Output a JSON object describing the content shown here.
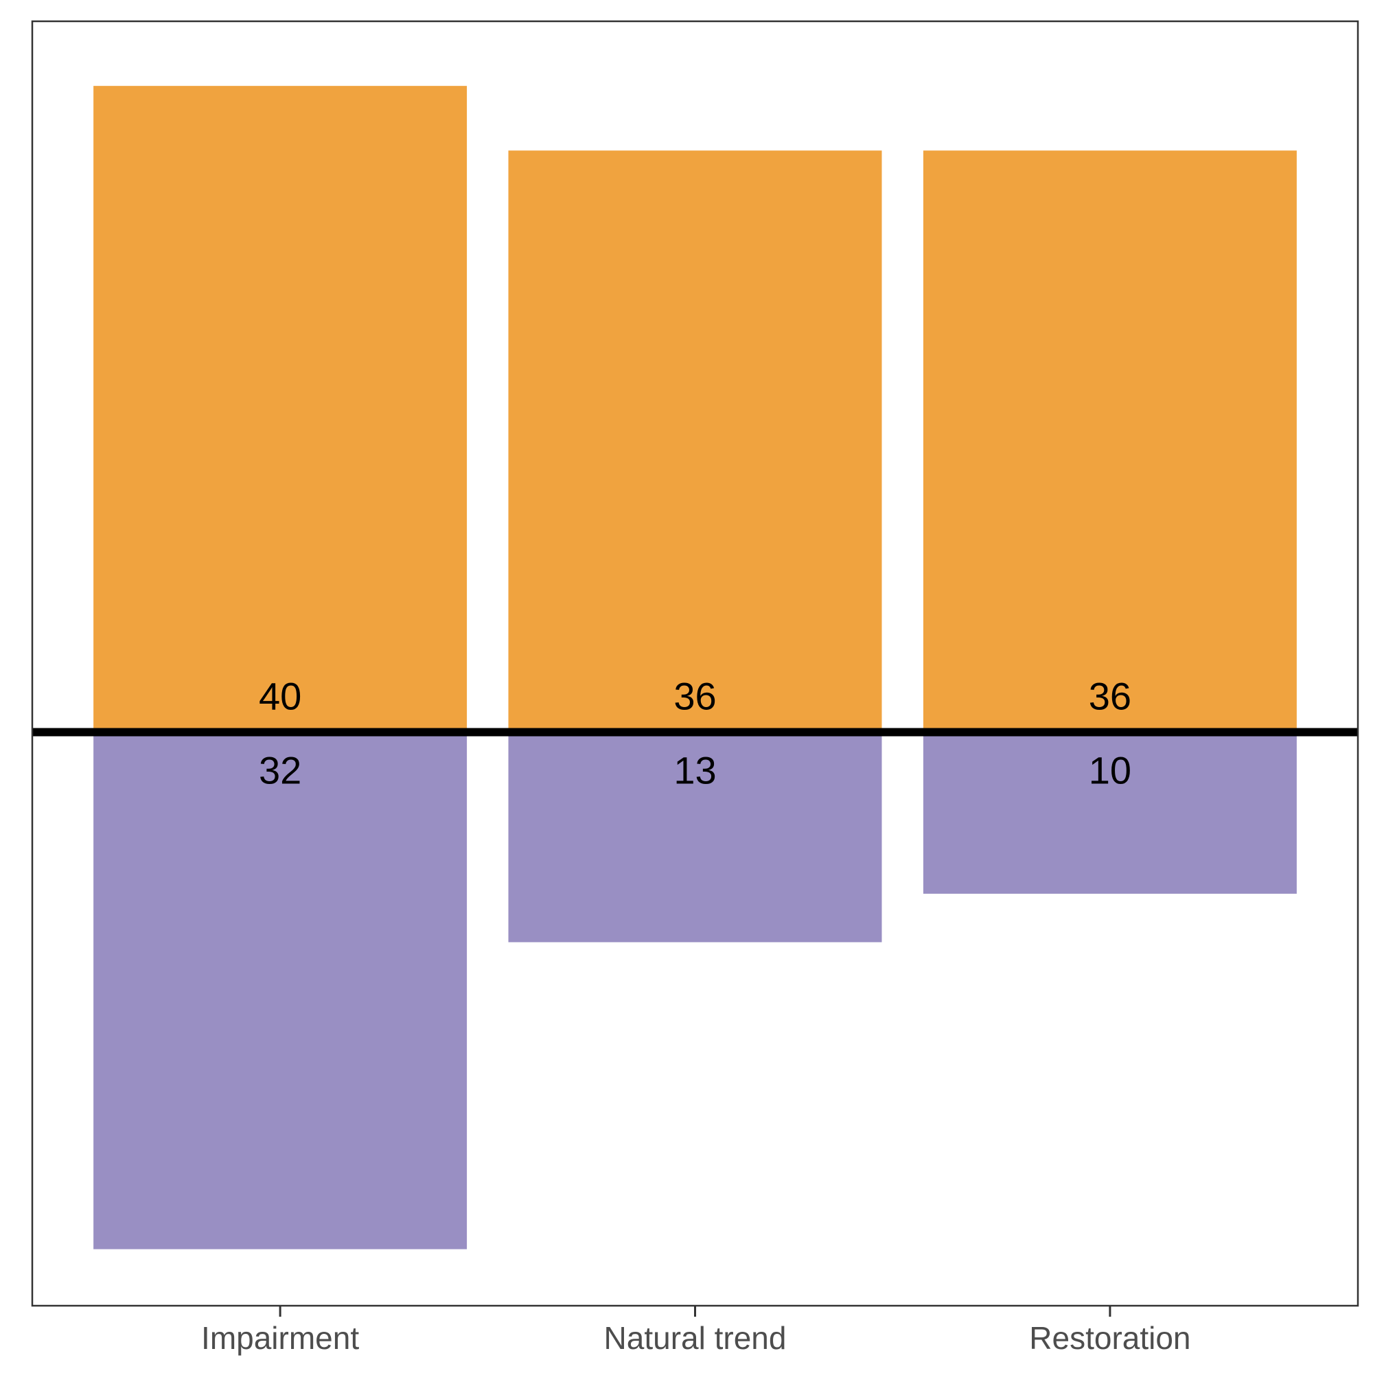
{
  "chart_data": {
    "type": "bar",
    "categories": [
      "Impairment",
      "Natural trend",
      "Restoration"
    ],
    "series": [
      {
        "values": [
          40,
          36,
          36
        ],
        "color": "#F0A33F",
        "direction": "up"
      },
      {
        "values": [
          32,
          13,
          10
        ],
        "color": "#998FC3",
        "direction": "down"
      }
    ],
    "ylim": [
      -35.5,
      44
    ],
    "baseline": 0,
    "xlabel": "",
    "ylabel": "",
    "title": "",
    "grid": false,
    "legend": "none",
    "colors": {
      "baseline": "#000000",
      "frame": "#333333",
      "tick_text": "#4d4d4d"
    }
  }
}
